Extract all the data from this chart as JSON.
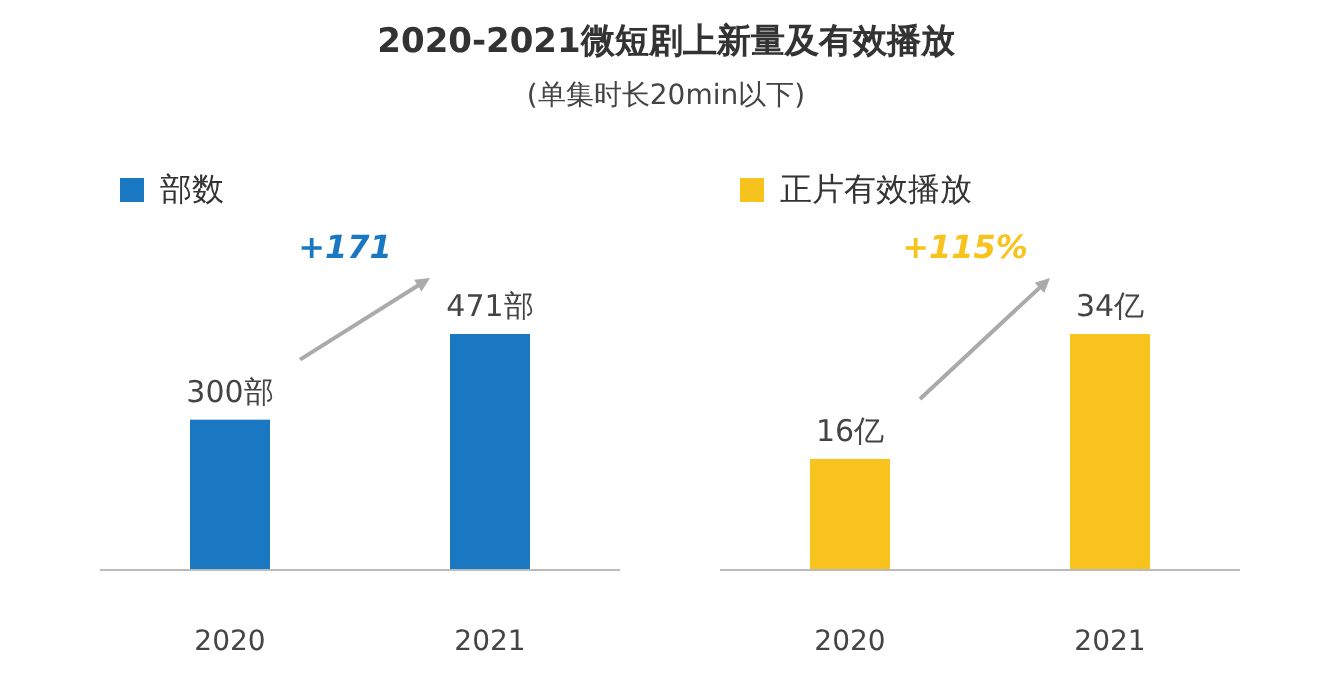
{
  "chart_data": [
    {
      "type": "bar",
      "title": "2020-2021微短剧上新量及有效播放",
      "subtitle": "(单集时长20min以下)",
      "categories": [
        "2020",
        "2021"
      ],
      "legend": "top left",
      "annotations": [
        "+171"
      ],
      "series": [
        {
          "name": "部数",
          "color": "#1a78c2",
          "values": [
            300,
            471
          ],
          "value_labels": [
            "300部",
            "471部"
          ]
        }
      ]
    },
    {
      "type": "bar",
      "categories": [
        "2020",
        "2021"
      ],
      "legend": "top left",
      "annotations": [
        "+115%"
      ],
      "series": [
        {
          "name": "正片有效播放",
          "color": "#f7c31c",
          "values": [
            16,
            34
          ],
          "value_labels": [
            "16亿",
            "34亿"
          ]
        }
      ]
    }
  ]
}
